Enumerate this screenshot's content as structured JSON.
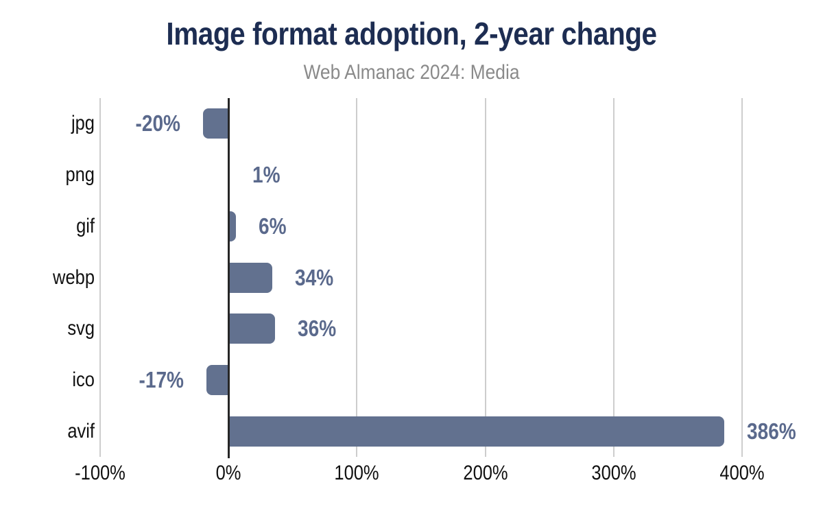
{
  "chart": {
    "title": "Image format adoption, 2-year change",
    "subtitle": "Web Almanac 2024: Media"
  },
  "chart_data": {
    "type": "bar",
    "orientation": "horizontal",
    "title": "Image format adoption, 2-year change",
    "subtitle": "Web Almanac 2024: Media",
    "categories": [
      "jpg",
      "png",
      "gif",
      "webp",
      "svg",
      "ico",
      "avif"
    ],
    "values": [
      -20,
      1,
      6,
      34,
      36,
      -17,
      386
    ],
    "value_labels": [
      "-20%",
      "1%",
      "6%",
      "34%",
      "36%",
      "-17%",
      "386%"
    ],
    "xlabel": "",
    "ylabel": "",
    "xlim": [
      -100,
      400
    ],
    "x_ticks": [
      -100,
      0,
      100,
      200,
      300,
      400
    ],
    "x_tick_labels": [
      "-100%",
      "0%",
      "100%",
      "200%",
      "300%",
      "400%"
    ],
    "grid": "vertical",
    "legend": "none",
    "colors": {
      "bar": "#62718F",
      "value_label": "#5A698C",
      "title": "#1D2D52",
      "subtitle": "#8A8A8A",
      "gridline": "#CDCDCD",
      "zero_axis": "#262626",
      "axis_text": "#111111"
    }
  }
}
